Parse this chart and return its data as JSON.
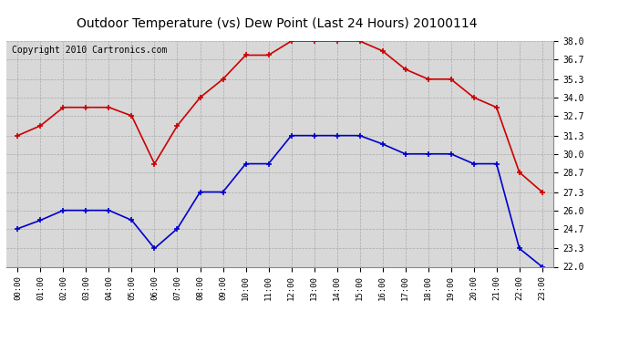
{
  "title": "Outdoor Temperature (vs) Dew Point (Last 24 Hours) 20100114",
  "copyright": "Copyright 2010 Cartronics.com",
  "hours": [
    "00:00",
    "01:00",
    "02:00",
    "03:00",
    "04:00",
    "05:00",
    "06:00",
    "07:00",
    "08:00",
    "09:00",
    "10:00",
    "11:00",
    "12:00",
    "13:00",
    "14:00",
    "15:00",
    "16:00",
    "17:00",
    "18:00",
    "19:00",
    "20:00",
    "21:00",
    "22:00",
    "23:00"
  ],
  "red_temp": [
    31.3,
    32.0,
    33.3,
    33.3,
    33.3,
    32.7,
    29.3,
    32.0,
    34.0,
    35.3,
    37.0,
    37.0,
    38.0,
    38.0,
    38.0,
    38.0,
    37.3,
    36.0,
    35.3,
    35.3,
    34.0,
    33.3,
    28.7,
    27.3
  ],
  "blue_dewpoint": [
    24.7,
    25.3,
    26.0,
    26.0,
    26.0,
    25.3,
    23.3,
    24.7,
    27.3,
    27.3,
    29.3,
    29.3,
    31.3,
    31.3,
    31.3,
    31.3,
    30.7,
    30.0,
    30.0,
    30.0,
    29.3,
    29.3,
    23.3,
    22.0
  ],
  "ylim_min": 22.0,
  "ylim_max": 38.0,
  "yticks": [
    22.0,
    23.3,
    24.7,
    26.0,
    27.3,
    28.7,
    30.0,
    31.3,
    32.7,
    34.0,
    35.3,
    36.7,
    38.0
  ],
  "red_color": "#cc0000",
  "blue_color": "#0000cc",
  "bg_color": "#d8d8d8",
  "grid_color": "#aaaaaa",
  "title_fontsize": 10,
  "copyright_fontsize": 7
}
